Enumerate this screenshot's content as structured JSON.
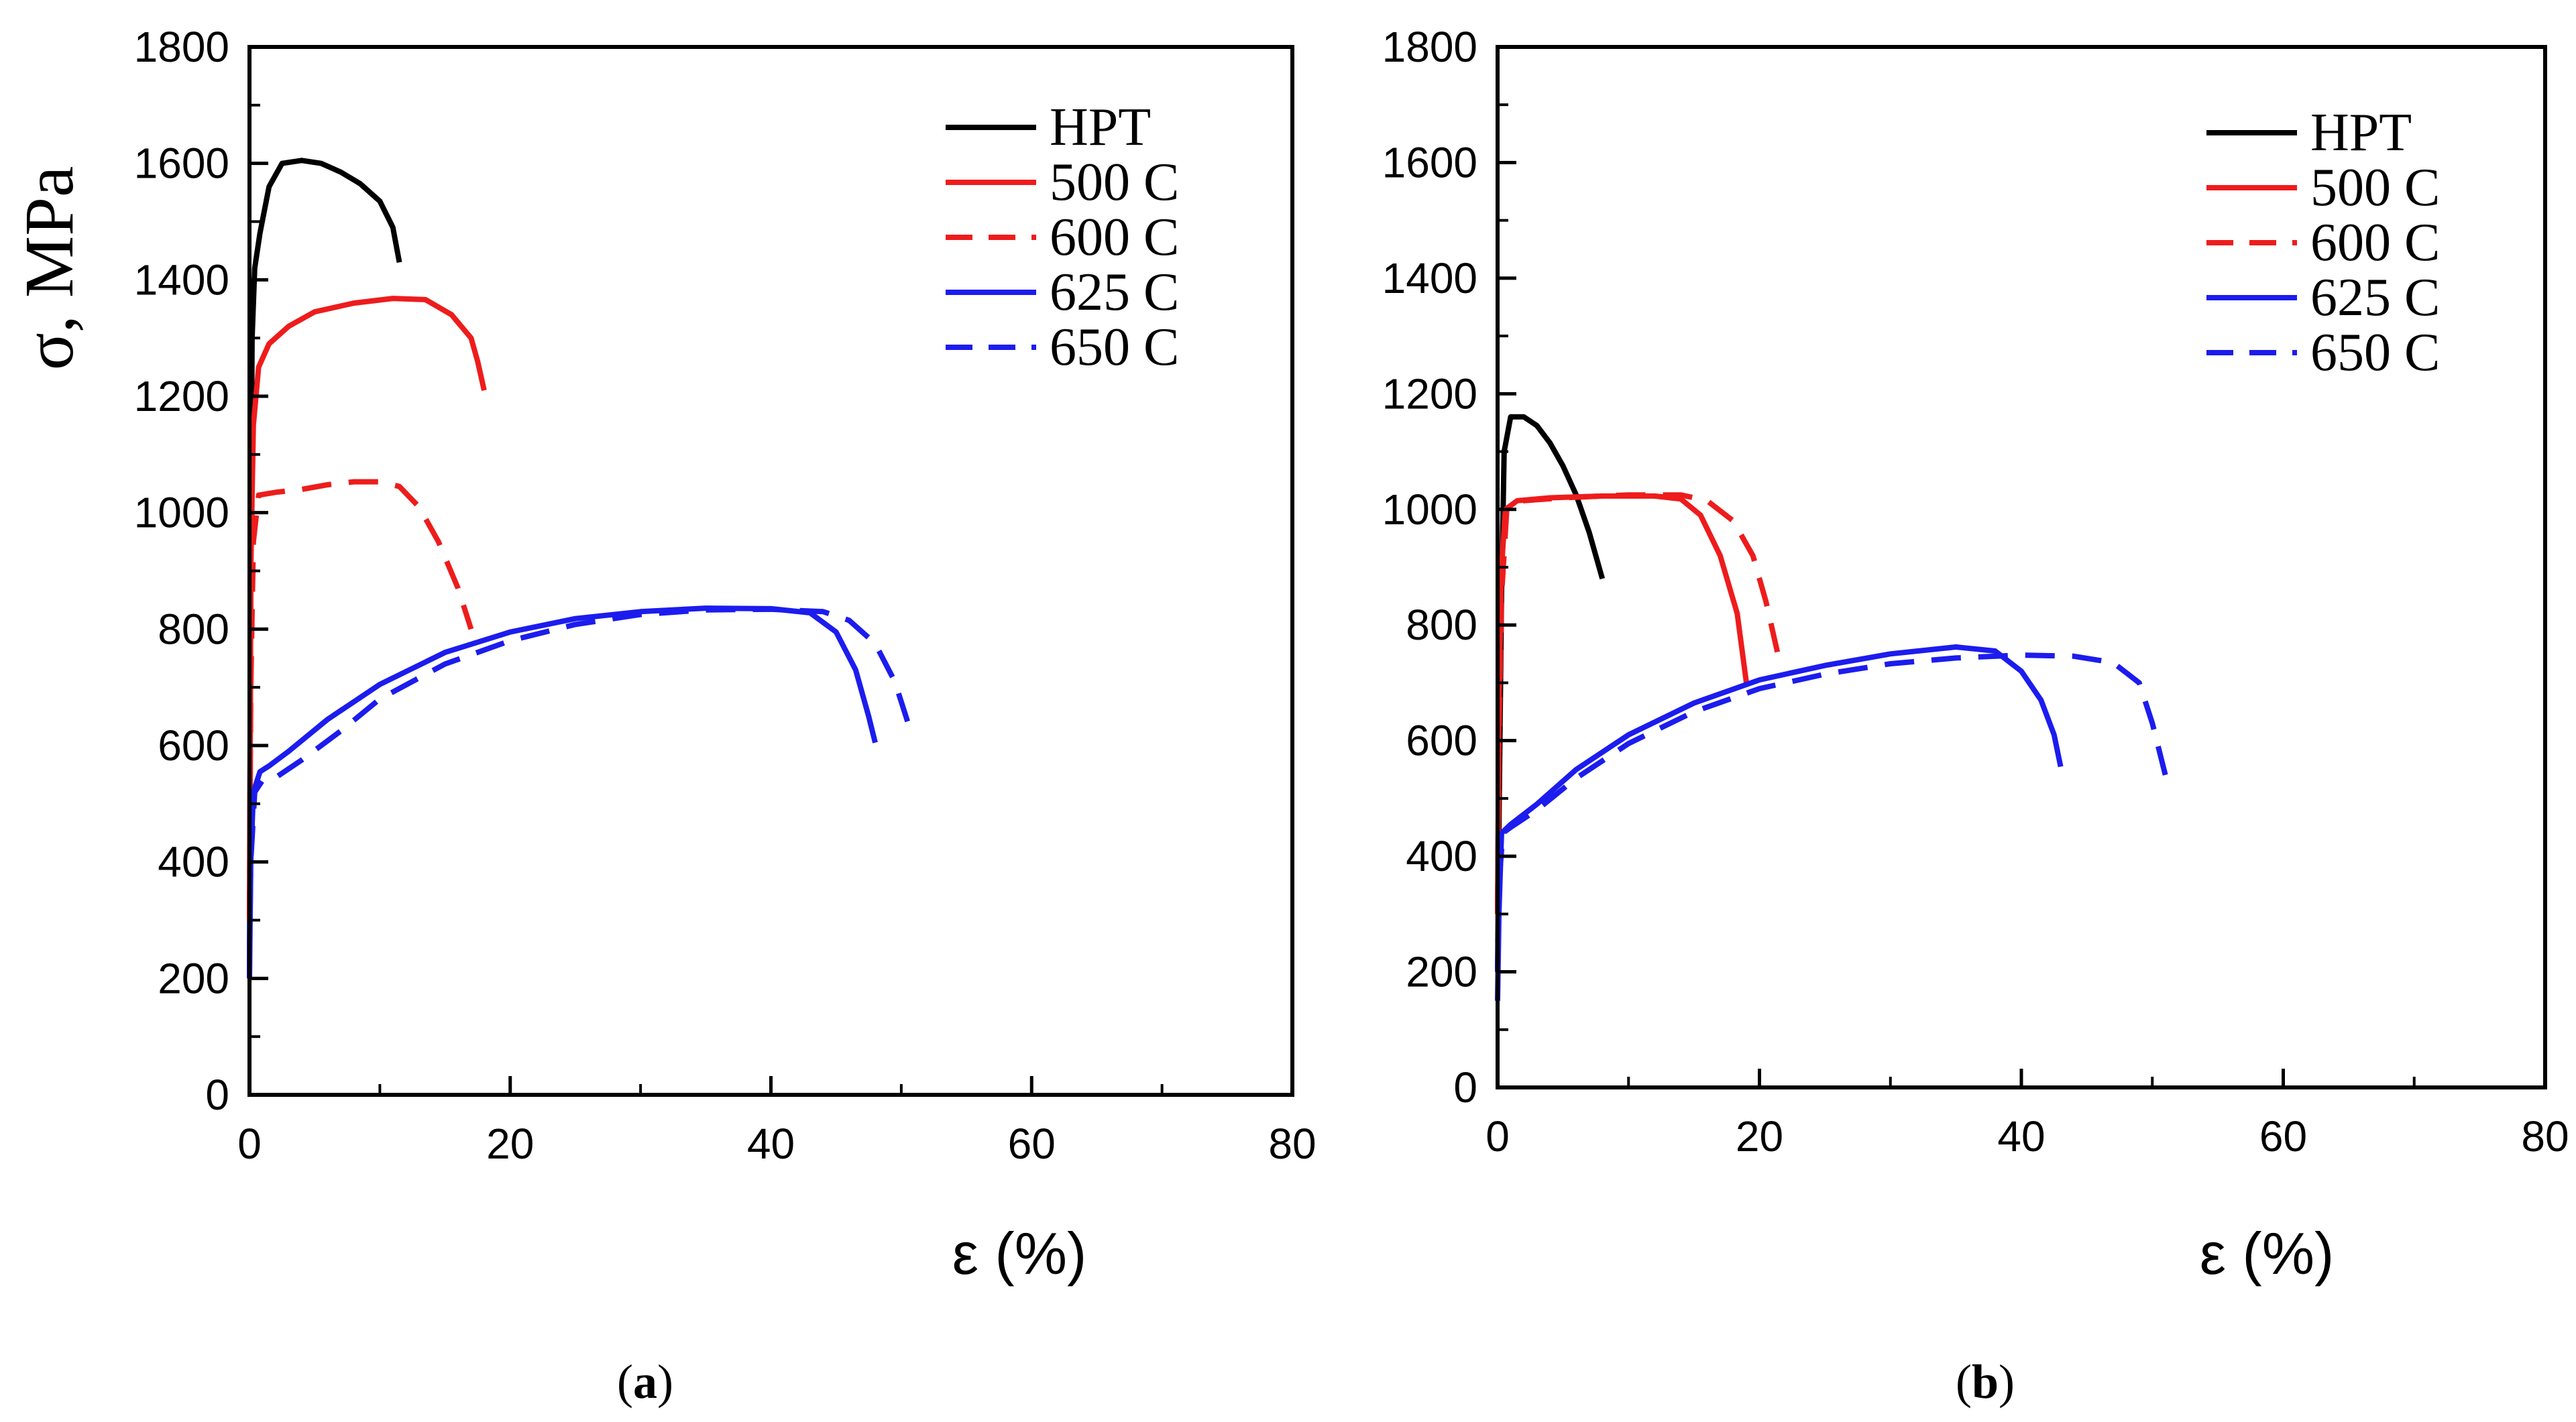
{
  "chart_data": [
    {
      "type": "line",
      "panel_label": "a",
      "ylabel": "σ, MPa",
      "xlabel": "ε (%)",
      "xlim": [
        0,
        80
      ],
      "ylim": [
        0,
        1800
      ],
      "xticks": [
        0,
        20,
        40,
        60,
        80
      ],
      "yticks": [
        0,
        200,
        400,
        600,
        800,
        1000,
        1200,
        1400,
        1600,
        1800
      ],
      "legend_position": "top-right",
      "series": [
        {
          "name": "HPT",
          "color": "#000000",
          "dash": "solid",
          "points": [
            [
              0,
              200
            ],
            [
              0.1,
              900
            ],
            [
              0.2,
              1300
            ],
            [
              0.4,
              1420
            ],
            [
              0.8,
              1480
            ],
            [
              1.5,
              1560
            ],
            [
              2.5,
              1600
            ],
            [
              4,
              1605
            ],
            [
              5.5,
              1600
            ],
            [
              7,
              1585
            ],
            [
              8.5,
              1565
            ],
            [
              10,
              1535
            ],
            [
              11,
              1490
            ],
            [
              11.5,
              1430
            ]
          ]
        },
        {
          "name": "500 C",
          "color": "#ee1c1c",
          "dash": "solid",
          "points": [
            [
              0,
              300
            ],
            [
              0.1,
              900
            ],
            [
              0.3,
              1150
            ],
            [
              0.7,
              1250
            ],
            [
              1.5,
              1290
            ],
            [
              3,
              1320
            ],
            [
              5,
              1345
            ],
            [
              8,
              1360
            ],
            [
              11,
              1368
            ],
            [
              13.5,
              1366
            ],
            [
              15.5,
              1340
            ],
            [
              17,
              1300
            ],
            [
              17.5,
              1260
            ],
            [
              18,
              1210
            ]
          ]
        },
        {
          "name": "600 C",
          "color": "#ee1c1c",
          "dash": "dashed",
          "points": [
            [
              0,
              300
            ],
            [
              0.1,
              700
            ],
            [
              0.3,
              950
            ],
            [
              0.7,
              1030
            ],
            [
              2,
              1035
            ],
            [
              4,
              1040
            ],
            [
              6,
              1048
            ],
            [
              8,
              1053
            ],
            [
              10,
              1053
            ],
            [
              11.5,
              1045
            ],
            [
              13,
              1010
            ],
            [
              14.5,
              950
            ],
            [
              16,
              870
            ],
            [
              17,
              800
            ]
          ]
        },
        {
          "name": "625 C",
          "color": "#1c1cee",
          "dash": "solid",
          "points": [
            [
              0,
              200
            ],
            [
              0.1,
              400
            ],
            [
              0.3,
              520
            ],
            [
              0.8,
              555
            ],
            [
              1.5,
              565
            ],
            [
              3,
              590
            ],
            [
              6,
              645
            ],
            [
              10,
              705
            ],
            [
              15,
              760
            ],
            [
              20,
              795
            ],
            [
              25,
              818
            ],
            [
              30,
              830
            ],
            [
              35,
              836
            ],
            [
              40,
              835
            ],
            [
              43,
              828
            ],
            [
              45,
              795
            ],
            [
              46.5,
              730
            ],
            [
              47.5,
              650
            ],
            [
              48,
              605
            ]
          ]
        },
        {
          "name": "650 C",
          "color": "#1c1cee",
          "dash": "dashed",
          "points": [
            [
              0,
              250
            ],
            [
              0.1,
              400
            ],
            [
              0.4,
              520
            ],
            [
              1,
              540
            ],
            [
              2,
              545
            ],
            [
              4,
              575
            ],
            [
              7,
              625
            ],
            [
              10,
              680
            ],
            [
              15,
              740
            ],
            [
              20,
              780
            ],
            [
              25,
              808
            ],
            [
              30,
              825
            ],
            [
              35,
              833
            ],
            [
              40,
              834
            ],
            [
              44,
              830
            ],
            [
              46,
              815
            ],
            [
              48,
              775
            ],
            [
              49.5,
              710
            ],
            [
              50.5,
              640
            ]
          ]
        }
      ]
    },
    {
      "type": "line",
      "panel_label": "b",
      "ylabel": "",
      "xlabel": "ε (%)",
      "xlim": [
        0,
        80
      ],
      "ylim": [
        0,
        1800
      ],
      "xticks": [
        0,
        20,
        40,
        60,
        80
      ],
      "yticks": [
        0,
        200,
        400,
        600,
        800,
        1000,
        1200,
        1400,
        1600,
        1800
      ],
      "legend_position": "top-right",
      "series": [
        {
          "name": "HPT",
          "color": "#000000",
          "dash": "solid",
          "points": [
            [
              0,
              200
            ],
            [
              0.1,
              450
            ],
            [
              0.3,
              850
            ],
            [
              0.5,
              1100
            ],
            [
              1,
              1160
            ],
            [
              2,
              1160
            ],
            [
              3,
              1145
            ],
            [
              4,
              1115
            ],
            [
              5,
              1075
            ],
            [
              6,
              1025
            ],
            [
              7,
              960
            ],
            [
              8,
              880
            ]
          ]
        },
        {
          "name": "500 C",
          "color": "#ee1c1c",
          "dash": "solid",
          "points": [
            [
              0,
              300
            ],
            [
              0.1,
              650
            ],
            [
              0.3,
              900
            ],
            [
              0.6,
              1000
            ],
            [
              1.5,
              1015
            ],
            [
              4,
              1020
            ],
            [
              8,
              1023
            ],
            [
              12,
              1023
            ],
            [
              14,
              1018
            ],
            [
              15.5,
              990
            ],
            [
              17,
              920
            ],
            [
              18.3,
              820
            ],
            [
              19,
              700
            ]
          ]
        },
        {
          "name": "600 C",
          "color": "#ee1c1c",
          "dash": "dashed",
          "points": [
            [
              0,
              300
            ],
            [
              0.1,
              600
            ],
            [
              0.3,
              850
            ],
            [
              0.7,
              1000
            ],
            [
              2,
              1015
            ],
            [
              5,
              1020
            ],
            [
              10,
              1025
            ],
            [
              14,
              1025
            ],
            [
              16,
              1015
            ],
            [
              18,
              980
            ],
            [
              19.5,
              920
            ],
            [
              20.5,
              840
            ],
            [
              21.5,
              740
            ]
          ]
        },
        {
          "name": "625 C",
          "color": "#1c1cee",
          "dash": "solid",
          "points": [
            [
              0,
              150
            ],
            [
              0.1,
              300
            ],
            [
              0.3,
              440
            ],
            [
              1,
              455
            ],
            [
              3,
              490
            ],
            [
              6,
              550
            ],
            [
              10,
              610
            ],
            [
              15,
              665
            ],
            [
              20,
              705
            ],
            [
              25,
              730
            ],
            [
              30,
              750
            ],
            [
              35,
              762
            ],
            [
              38,
              755
            ],
            [
              40,
              720
            ],
            [
              41.5,
              670
            ],
            [
              42.5,
              610
            ],
            [
              43,
              555
            ]
          ]
        },
        {
          "name": "650 C",
          "color": "#1c1cee",
          "dash": "dashed",
          "points": [
            [
              0,
              200
            ],
            [
              0.1,
              350
            ],
            [
              0.4,
              440
            ],
            [
              1,
              450
            ],
            [
              3,
              480
            ],
            [
              6,
              535
            ],
            [
              10,
              595
            ],
            [
              15,
              650
            ],
            [
              20,
              690
            ],
            [
              25,
              715
            ],
            [
              30,
              733
            ],
            [
              35,
              743
            ],
            [
              40,
              748
            ],
            [
              44,
              746
            ],
            [
              47,
              735
            ],
            [
              49,
              700
            ],
            [
              50,
              630
            ],
            [
              51,
              540
            ]
          ]
        }
      ]
    }
  ]
}
